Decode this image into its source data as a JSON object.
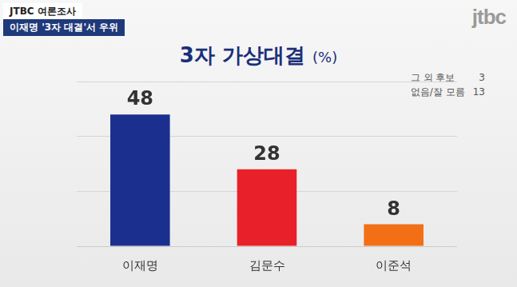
{
  "header": {
    "source": "JTBC 여론조사",
    "headline": "이재명 '3자 대결'서 우위"
  },
  "logo": "jtbc",
  "chart_data": {
    "type": "bar",
    "title": "3자 가상대결",
    "unit": "(%)",
    "categories": [
      "이재명",
      "김문수",
      "이준석"
    ],
    "values": [
      48,
      28,
      8
    ],
    "colors": [
      "#1b2f8f",
      "#e8202a",
      "#f36f16"
    ],
    "ylim": [
      0,
      60
    ],
    "yticks": [
      0,
      20,
      40,
      60
    ],
    "grid": true,
    "tick_labels": "x",
    "data_labels": true,
    "notes": [
      {
        "label": "그 외 후보",
        "value": 3
      },
      {
        "label": "없음/잘 모름",
        "value": 13
      }
    ]
  }
}
